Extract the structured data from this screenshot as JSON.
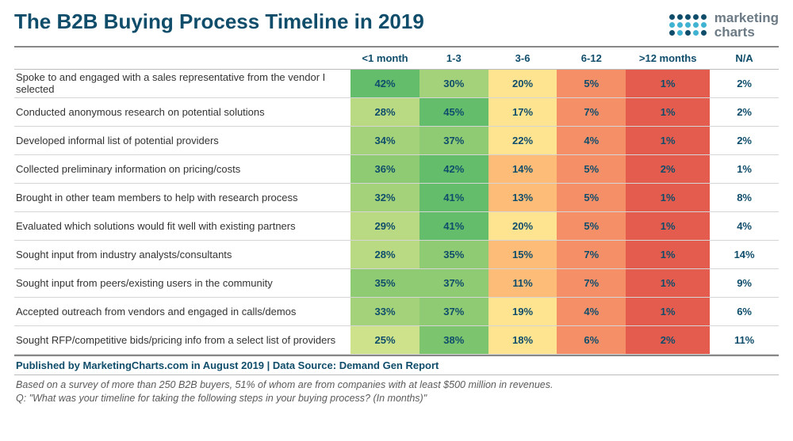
{
  "title": "The B2B Buying Process Timeline in 2019",
  "title_color": "#0f4d6b",
  "title_fontsize": 26,
  "logo": {
    "text1": "marketing",
    "text2": "charts",
    "text_color": "#6b7a85",
    "text_fontsize": 17,
    "dot_colors": [
      "#0f4d6b",
      "#0f4d6b",
      "#0f4d6b",
      "#0f4d6b",
      "#0f4d6b",
      "#3fb3d1",
      "#3fb3d1",
      "#3fb3d1",
      "#3fb3d1",
      "#3fb3d1",
      "#0f4d6b",
      "#3fb3d1",
      "#0f4d6b",
      "#3fb3d1",
      "#0f4d6b"
    ]
  },
  "columns": [
    "",
    "<1 month",
    "1-3",
    "3-6",
    "6-12",
    ">12 months",
    "N/A"
  ],
  "column_widths": [
    "44%",
    "9%",
    "9%",
    "9%",
    "9%",
    "11%",
    "9%"
  ],
  "header_fontsize": 13,
  "header_color": "#0f4d6b",
  "cell_fontsize": 13,
  "cell_text_color": "#0f4d6b",
  "row_label_fontsize": 13,
  "row_label_color": "#333333",
  "na_bg": "#ffffff",
  "heatmap_palette_note": "green=high, yellow=mid, orange=low-mid, red=low",
  "rows": [
    {
      "label": "Spoke to and engaged with a sales representative from the vendor I selected",
      "values": [
        "42%",
        "30%",
        "20%",
        "5%",
        "1%",
        "2%"
      ],
      "colors": [
        "#63bd6b",
        "#a4d27a",
        "#fee490",
        "#f58f67",
        "#e35c4e",
        "#ffffff"
      ]
    },
    {
      "label": "Conducted anonymous research on potential solutions",
      "values": [
        "28%",
        "45%",
        "17%",
        "7%",
        "1%",
        "2%"
      ],
      "colors": [
        "#b9da82",
        "#63bd6b",
        "#fee490",
        "#f58f67",
        "#e35c4e",
        "#ffffff"
      ]
    },
    {
      "label": "Developed informal list of potential providers",
      "values": [
        "34%",
        "37%",
        "22%",
        "4%",
        "1%",
        "2%"
      ],
      "colors": [
        "#a4d27a",
        "#8fcb72",
        "#fee490",
        "#f58f67",
        "#e35c4e",
        "#ffffff"
      ]
    },
    {
      "label": "Collected preliminary information on pricing/costs",
      "values": [
        "36%",
        "42%",
        "14%",
        "5%",
        "2%",
        "1%"
      ],
      "colors": [
        "#8fcb72",
        "#63bd6b",
        "#fdbd78",
        "#f58f67",
        "#e35c4e",
        "#ffffff"
      ]
    },
    {
      "label": "Brought in other team members to help with research process",
      "values": [
        "32%",
        "41%",
        "13%",
        "5%",
        "1%",
        "8%"
      ],
      "colors": [
        "#a4d27a",
        "#63bd6b",
        "#fdbd78",
        "#f58f67",
        "#e35c4e",
        "#ffffff"
      ]
    },
    {
      "label": "Evaluated which solutions would fit well with existing partners",
      "values": [
        "29%",
        "41%",
        "20%",
        "5%",
        "1%",
        "4%"
      ],
      "colors": [
        "#b9da82",
        "#63bd6b",
        "#fee490",
        "#f58f67",
        "#e35c4e",
        "#ffffff"
      ]
    },
    {
      "label": "Sought input from industry analysts/consultants",
      "values": [
        "28%",
        "35%",
        "15%",
        "7%",
        "1%",
        "14%"
      ],
      "colors": [
        "#b9da82",
        "#8fcb72",
        "#fdbd78",
        "#f58f67",
        "#e35c4e",
        "#ffffff"
      ]
    },
    {
      "label": "Sought input from peers/existing users in the community",
      "values": [
        "35%",
        "37%",
        "11%",
        "7%",
        "1%",
        "9%"
      ],
      "colors": [
        "#8fcb72",
        "#8fcb72",
        "#fdbd78",
        "#f58f67",
        "#e35c4e",
        "#ffffff"
      ]
    },
    {
      "label": "Accepted outreach from vendors and engaged in calls/demos",
      "values": [
        "33%",
        "37%",
        "19%",
        "4%",
        "1%",
        "6%"
      ],
      "colors": [
        "#a4d27a",
        "#8fcb72",
        "#fee490",
        "#f58f67",
        "#e35c4e",
        "#ffffff"
      ]
    },
    {
      "label": "Sought RFP/competitive bids/pricing info from a select list of providers",
      "values": [
        "25%",
        "38%",
        "18%",
        "6%",
        "2%",
        "11%"
      ],
      "colors": [
        "#cde28a",
        "#7cc46d",
        "#fee490",
        "#f58f67",
        "#e35c4e",
        "#ffffff"
      ]
    }
  ],
  "footer": "Published by MarketingCharts.com in August 2019 | Data Source: Demand Gen Report",
  "footer_fontsize": 13,
  "footer_color": "#0f4d6b",
  "footnote_line1": "Based on a survey of more than 250 B2B buyers, 51% of whom are from companies with at least $500 million in revenues.",
  "footnote_line2": "Q: \"What was your timeline for taking the following steps in your buying process? (In months)\"",
  "footnote_fontsize": 12.5,
  "footnote_color": "#5a5a5a"
}
